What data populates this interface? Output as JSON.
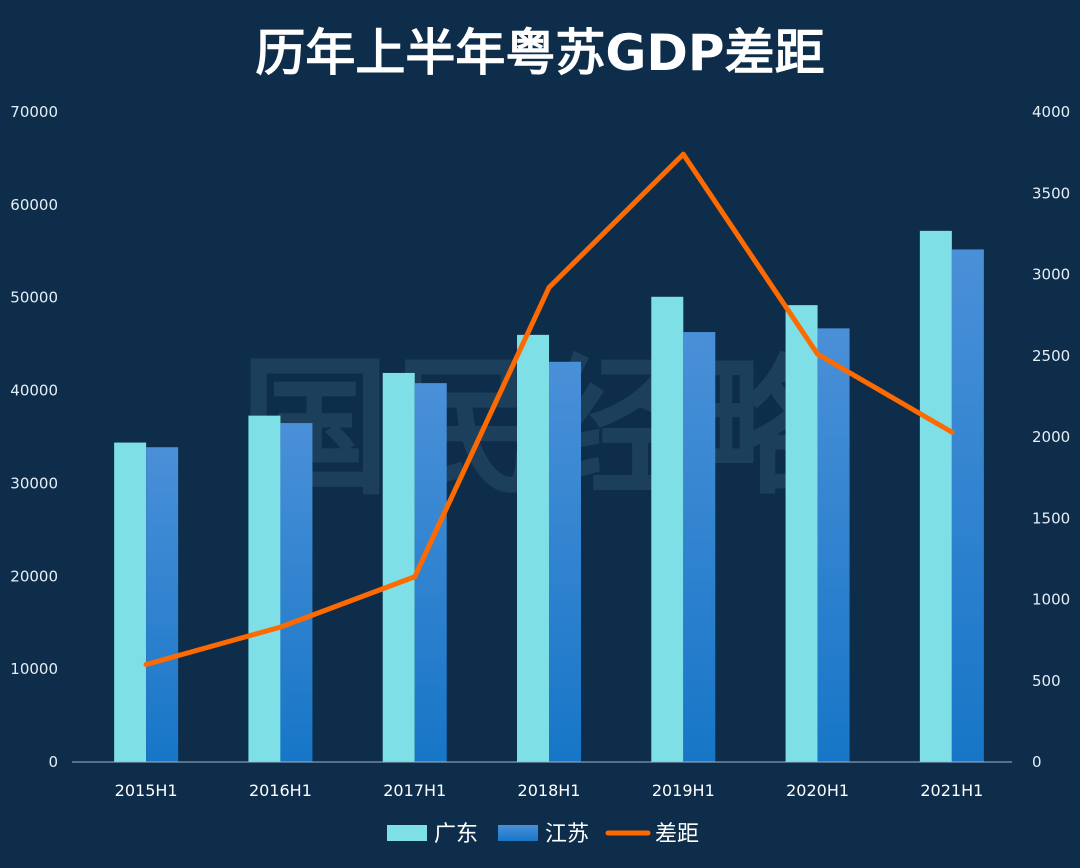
{
  "chart_data": {
    "type": "bar",
    "title": "历年上半年粤苏GDP差距",
    "categories": [
      "2015H1",
      "2016H1",
      "2017H1",
      "2018H1",
      "2019H1",
      "2020H1",
      "2021H1"
    ],
    "series": [
      {
        "name": "广东",
        "type": "bar",
        "axis": "left",
        "color": "#7ee0e6",
        "values": [
          34400,
          37300,
          41900,
          46000,
          50100,
          49200,
          57200
        ]
      },
      {
        "name": "江苏",
        "type": "bar",
        "axis": "left",
        "color": "#1e7fd0",
        "values": [
          33900,
          36500,
          40800,
          43100,
          46300,
          46700,
          55200
        ]
      },
      {
        "name": "差距",
        "type": "line",
        "axis": "right",
        "color": "#ff6a00",
        "values": [
          600,
          830,
          1140,
          2920,
          3740,
          2510,
          2030
        ]
      }
    ],
    "y_left": {
      "min": 0,
      "max": 70000,
      "step": 10000
    },
    "y_right": {
      "min": 0,
      "max": 4000,
      "step": 500
    },
    "grid": false,
    "legend": "bottom-center",
    "watermark": "国民经略"
  }
}
